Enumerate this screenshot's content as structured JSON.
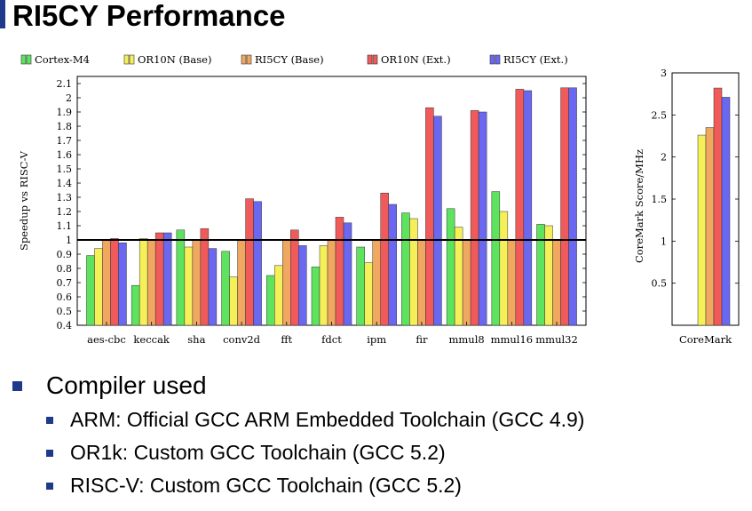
{
  "slide": {
    "title": "RI5CY Performance",
    "bullet_main": "Compiler used",
    "sub_bullets": [
      "ARM: Official GCC ARM Embedded Toolchain (GCC 4.9)",
      "OR1k: Custom GCC Toolchain (GCC 5.2)",
      "RISC-V: Custom GCC Toolchain (GCC 5.2)"
    ],
    "accent_color": "#1f3a8a"
  },
  "chart_data": [
    {
      "type": "bar",
      "ylabel": "Speedup vs RISC-V",
      "ylim": [
        0.4,
        2.15
      ],
      "yticks": [
        "0.4",
        "0.5",
        "0.6",
        "0.7",
        "0.8",
        "0.9",
        "1",
        "1.1",
        "1.2",
        "1.3",
        "1.4",
        "1.5",
        "1.6",
        "1.7",
        "1.8",
        "1.9",
        "2",
        "2.1"
      ],
      "reference_line": 1,
      "legend_position": "top",
      "categories": [
        "aes-cbc",
        "keccak",
        "sha",
        "conv2d",
        "fft",
        "fdct",
        "ipm",
        "fir",
        "mmul8",
        "mmul16",
        "mmul32"
      ],
      "series": [
        {
          "name": "Cortex-M4",
          "color": "#5ee35e",
          "values": [
            0.89,
            0.68,
            1.07,
            0.92,
            0.75,
            0.81,
            0.95,
            1.19,
            1.22,
            1.34,
            1.11
          ]
        },
        {
          "name": "OR10N (Base)",
          "color": "#f5f05a",
          "values": [
            0.94,
            1.01,
            0.95,
            0.74,
            0.82,
            0.96,
            0.84,
            1.15,
            1.09,
            1.2,
            1.1
          ]
        },
        {
          "name": "RI5CY (Base)",
          "color": "#f0a860",
          "values": [
            1.0,
            1.0,
            1.0,
            1.0,
            1.0,
            1.0,
            1.0,
            1.0,
            1.0,
            1.0,
            1.0
          ]
        },
        {
          "name": "OR10N (Ext.)",
          "color": "#f05a5a",
          "values": [
            1.01,
            1.05,
            1.08,
            1.29,
            1.07,
            1.16,
            1.33,
            1.93,
            1.91,
            2.06,
            2.07
          ]
        },
        {
          "name": "RI5CY (Ext.)",
          "color": "#6a68f0",
          "values": [
            0.98,
            1.05,
            0.94,
            1.27,
            0.96,
            1.12,
            1.25,
            1.87,
            1.9,
            2.05,
            2.07
          ]
        }
      ]
    },
    {
      "type": "bar",
      "ylabel": "CoreMark Score/MHz",
      "ylim": [
        0,
        3
      ],
      "yticks": [
        "0.5",
        "1",
        "1.5",
        "2",
        "2.5",
        "3"
      ],
      "categories": [
        "CoreMark"
      ],
      "series": [
        {
          "name": "Cortex-M4",
          "color": "#5ee35e",
          "values": [
            null
          ]
        },
        {
          "name": "OR10N (Base)",
          "color": "#f5f05a",
          "values": [
            2.26
          ]
        },
        {
          "name": "RI5CY (Base)",
          "color": "#f0a860",
          "values": [
            2.35
          ]
        },
        {
          "name": "OR10N (Ext.)",
          "color": "#f05a5a",
          "values": [
            2.82
          ]
        },
        {
          "name": "RI5CY (Ext.)",
          "color": "#6a68f0",
          "values": [
            2.71
          ]
        }
      ]
    }
  ]
}
